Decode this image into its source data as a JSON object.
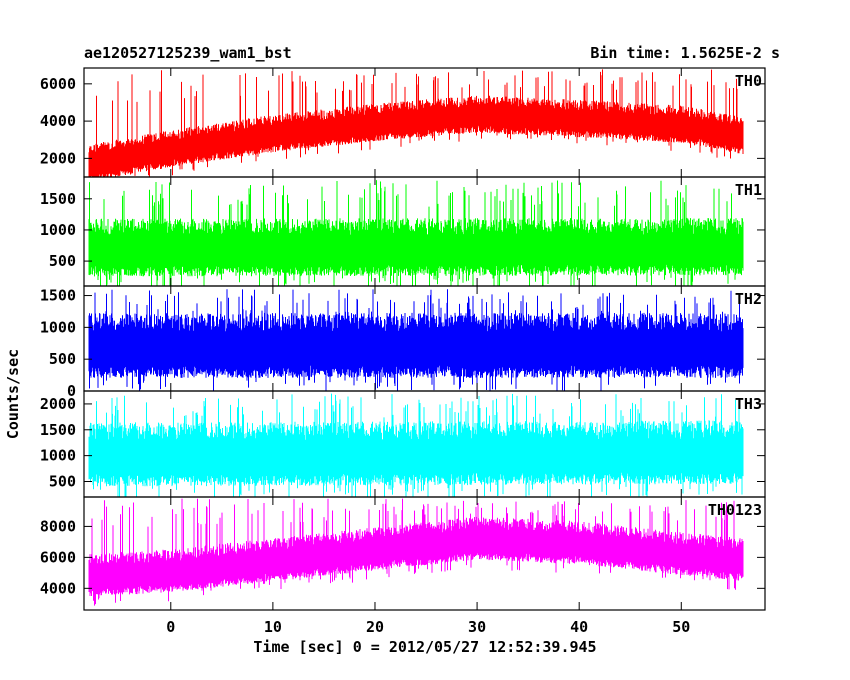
{
  "header": {
    "title_left": "ae120527125239_wam1_bst",
    "title_right": "Bin time: 1.5625E-2 s"
  },
  "axes": {
    "ylabel": "Counts/sec",
    "xlabel": "Time [sec] 0 = 2012/05/27 12:52:39.945"
  },
  "chart_data": {
    "type": "line",
    "x_range": [
      -8.5,
      58.2
    ],
    "x_data_range": [
      -8.0,
      56.0
    ],
    "x_ticks": [
      0,
      10,
      20,
      30,
      40,
      50
    ],
    "bin_time_s": 0.015625,
    "panels": [
      {
        "label": "TH0",
        "color": "#ff0000",
        "ylim": [
          1000,
          6850
        ],
        "y_ticks": [
          2000,
          4000,
          6000
        ],
        "trend": [
          [
            -8,
            1700
          ],
          [
            0,
            2500
          ],
          [
            10,
            3300
          ],
          [
            20,
            3900
          ],
          [
            30,
            4350
          ],
          [
            40,
            4100
          ],
          [
            50,
            3800
          ],
          [
            56,
            3200
          ]
        ],
        "spread": 650,
        "peak": 6800
      },
      {
        "label": "TH1",
        "color": "#00ff00",
        "ylim": [
          100,
          1850
        ],
        "y_ticks": [
          500,
          1000,
          1500
        ],
        "trend": [
          [
            -8,
            700
          ],
          [
            56,
            720
          ]
        ],
        "spread": 300,
        "peak": 1800
      },
      {
        "label": "TH2",
        "color": "#0000ff",
        "ylim": [
          0,
          1650
        ],
        "y_ticks": [
          0,
          500,
          1000,
          1500
        ],
        "trend": [
          [
            -8,
            700
          ],
          [
            56,
            700
          ]
        ],
        "spread": 330,
        "peak": 1600
      },
      {
        "label": "TH3",
        "color": "#00ffff",
        "ylim": [
          200,
          2250
        ],
        "y_ticks": [
          500,
          1000,
          1500,
          2000
        ],
        "trend": [
          [
            -8,
            1000
          ],
          [
            56,
            1050
          ]
        ],
        "spread": 400,
        "peak": 2200
      },
      {
        "label": "TH0123",
        "color": "#ff00ff",
        "ylim": [
          2600,
          9900
        ],
        "y_ticks": [
          4000,
          6000,
          8000
        ],
        "trend": [
          [
            -8,
            4800
          ],
          [
            0,
            5100
          ],
          [
            10,
            5800
          ],
          [
            20,
            6500
          ],
          [
            30,
            7200
          ],
          [
            40,
            6900
          ],
          [
            50,
            6200
          ],
          [
            56,
            5800
          ]
        ],
        "spread": 900,
        "peak": 9800
      }
    ]
  }
}
